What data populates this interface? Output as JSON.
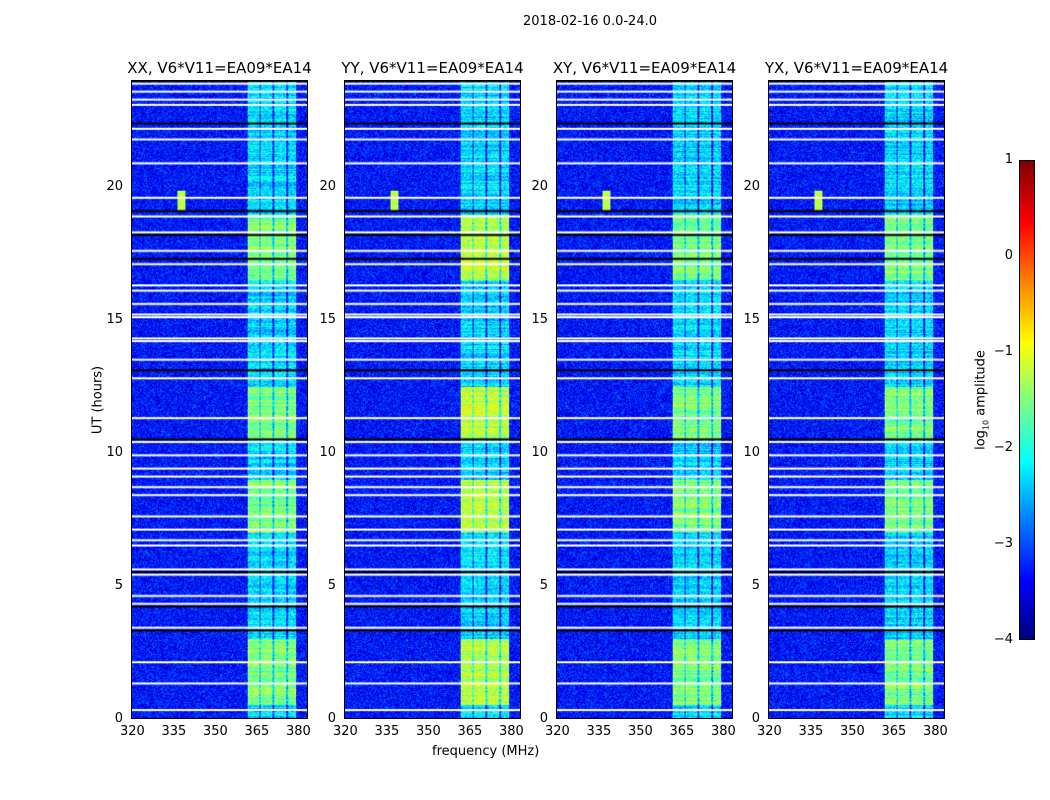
{
  "chart_data": {
    "type": "heatmap",
    "title": "2018-02-16 0.0-24.0",
    "xlabel": "frequency (MHz)",
    "ylabel": "UT (hours)",
    "xlim": [
      320,
      384
    ],
    "ylim": [
      0,
      24
    ],
    "xticks": [
      "320",
      "335",
      "350",
      "365",
      "380"
    ],
    "yticks": [
      "0",
      "5",
      "10",
      "15",
      "20"
    ],
    "panels": [
      {
        "title": "XX, V6*V11=EA09*EA14"
      },
      {
        "title": "YY, V6*V11=EA09*EA14"
      },
      {
        "title": "XY, V6*V11=EA09*EA14"
      },
      {
        "title": "YX, V6*V11=EA09*EA14"
      }
    ],
    "colorbar": {
      "label_main": "log",
      "label_sub": "10",
      "label_rest": " amplitude",
      "range": [
        -4,
        1
      ],
      "ticks": [
        "1",
        "0",
        "−1",
        "−2",
        "−3",
        "−4"
      ],
      "colormap": "jet"
    },
    "background_level": -3.3,
    "bright_band_mhz": [
      362,
      380
    ],
    "bright_periods_hours": [
      [
        0.5,
        3
      ],
      [
        7,
        9
      ],
      [
        10.5,
        12.5
      ],
      [
        16.5,
        19
      ]
    ],
    "flagged_hours_white": [
      0.3,
      1.3,
      2.1,
      3.4,
      4.3,
      4.6,
      5.4,
      5.6,
      6.5,
      6.7,
      7.1,
      7.6,
      8.4,
      8.7,
      9.1,
      9.4,
      9.9,
      10.4,
      11.3,
      12.8,
      13.5,
      14.2,
      14.3,
      15.1,
      15.2,
      15.6,
      16.1,
      16.3,
      17.1,
      17.6,
      18.3,
      18.9,
      19.6,
      20.9,
      21.8,
      22.2,
      23.1,
      23.3,
      23.6,
      23.9
    ],
    "flagged_hours_black": [
      3.3,
      4.2,
      5.5,
      10.5,
      13.1,
      17.3,
      18.2,
      19.1,
      22.4,
      24.0
    ]
  }
}
